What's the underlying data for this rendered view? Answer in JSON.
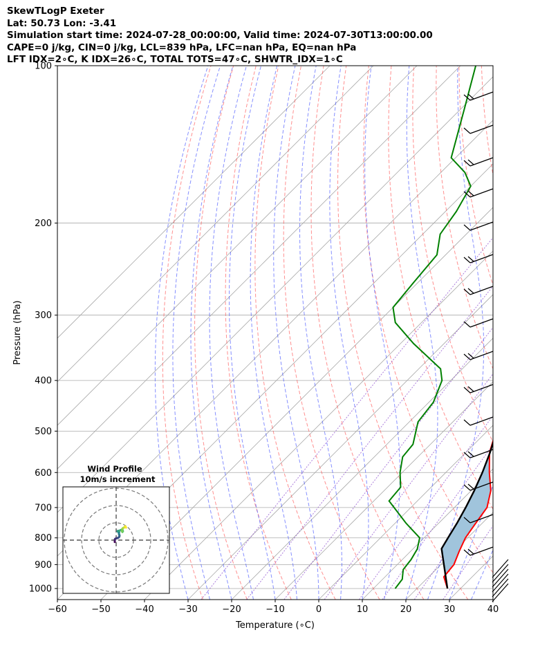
{
  "header": {
    "line1": "SkewTLogP Exeter",
    "line2": "Lat: 50.73   Lon: -3.41",
    "line3": "Simulation start time: 2024-07-28_00:00:00, Valid time: 2024-07-30T13:00:00.00",
    "line4": "CAPE=0 j/kg, CIN=0 j/kg, LCL=839 hPa, LFC=nan hPa, EQ=nan hPa",
    "line5": "LFT IDX=2∘C, K IDX=26∘C, TOTAL TOTS=47∘C, SHWTR_IDX=1∘C"
  },
  "chart_data": {
    "type": "line",
    "xlabel": "Temperature (∘C)",
    "ylabel": "Pressure (hPa)",
    "xlim": [
      -60,
      40
    ],
    "ylim": [
      1050,
      100
    ],
    "y_scale": "log",
    "skew": "45 degrees",
    "x_ticks": [
      "−60",
      "−50",
      "−40",
      "−30",
      "−20",
      "−10",
      "0",
      "10",
      "20",
      "30",
      "40"
    ],
    "x_tick_values": [
      -60,
      -50,
      -40,
      -30,
      -20,
      -10,
      0,
      10,
      20,
      30,
      40
    ],
    "y_ticks": [
      "100",
      "200",
      "300",
      "400",
      "500",
      "600",
      "700",
      "800",
      "900",
      "1000"
    ],
    "y_tick_values": [
      100,
      200,
      300,
      400,
      500,
      600,
      700,
      800,
      900,
      1000
    ],
    "grid": true,
    "colors": {
      "temperature": "#ff0000",
      "dewpoint": "#008000",
      "parcel": "#000000",
      "shade": "#a0c4dc",
      "dry_adiabat": "#ff4444",
      "moist_adiabat": "#3344ff",
      "mixing_ratio": "#8844cc",
      "isotherm": "#aaaaaa"
    },
    "series": [
      {
        "key": "temperature",
        "points": [
          [
            1000,
            27.0
          ],
          [
            950,
            23.5
          ],
          [
            900,
            23.0
          ],
          [
            850,
            21.2
          ],
          [
            800,
            19.5
          ],
          [
            750,
            18.5
          ],
          [
            700,
            17.5
          ],
          [
            650,
            14.5
          ],
          [
            600,
            10.0
          ],
          [
            550,
            5.5
          ],
          [
            500,
            2.0
          ],
          [
            450,
            -1.5
          ],
          [
            400,
            -6.5
          ],
          [
            350,
            -12.5
          ],
          [
            300,
            -19.5
          ],
          [
            270,
            -24.5
          ],
          [
            250,
            -29.0
          ],
          [
            230,
            -33.0
          ],
          [
            220,
            -35.5
          ],
          [
            200,
            -39.0
          ],
          [
            180,
            -42.5
          ],
          [
            160,
            -46.5
          ],
          [
            150,
            -48.5
          ],
          [
            130,
            -52.0
          ],
          [
            120,
            -54.5
          ],
          [
            110,
            -57.5
          ],
          [
            100,
            -60.0
          ]
        ]
      },
      {
        "key": "dewpoint",
        "points": [
          [
            1000,
            15.0
          ],
          [
            960,
            14.5
          ],
          [
            920,
            12.5
          ],
          [
            880,
            12.0
          ],
          [
            840,
            11.0
          ],
          [
            800,
            9.0
          ],
          [
            750,
            2.5
          ],
          [
            680,
            -6.5
          ],
          [
            640,
            -7.0
          ],
          [
            600,
            -10.5
          ],
          [
            560,
            -13.5
          ],
          [
            530,
            -14.0
          ],
          [
            480,
            -18.0
          ],
          [
            440,
            -19.0
          ],
          [
            400,
            -22.0
          ],
          [
            380,
            -25.0
          ],
          [
            340,
            -37.0
          ],
          [
            310,
            -46.0
          ],
          [
            290,
            -50.0
          ],
          [
            260,
            -51.0
          ],
          [
            230,
            -52.0
          ],
          [
            210,
            -56.0
          ],
          [
            190,
            -57.5
          ],
          [
            170,
            -60.0
          ],
          [
            160,
            -64.5
          ],
          [
            150,
            -71.0
          ],
          [
            120,
            -79.5
          ],
          [
            100,
            -86.5
          ]
        ]
      },
      {
        "key": "parcel",
        "points": [
          [
            1000,
            27.0
          ],
          [
            839,
            16.5
          ],
          [
            800,
            15.5
          ],
          [
            750,
            14.2
          ],
          [
            700,
            12.6
          ],
          [
            650,
            10.7
          ],
          [
            600,
            8.4
          ],
          [
            550,
            5.6
          ],
          [
            500,
            2.2
          ],
          [
            450,
            -2.0
          ],
          [
            400,
            -7.2
          ],
          [
            350,
            -13.7
          ],
          [
            300,
            -21.8
          ],
          [
            250,
            -31.8
          ],
          [
            200,
            -44.0
          ],
          [
            150,
            -57.6
          ],
          [
            120,
            -68.0
          ],
          [
            100,
            -75.9
          ]
        ]
      }
    ],
    "wind_barbs_note": "wind barbs on right edge, shown as drawn",
    "inset": {
      "title": "Wind Profile",
      "subtitle": "10m/s increment",
      "hodograph_x": [
        -0.8,
        -0.8,
        -0.8,
        -0.7,
        -0.5,
        0.0,
        0.8,
        1.4,
        1.8,
        1.9,
        1.9,
        1.7,
        1.6,
        1.7,
        1.2,
        0.8,
        1.1,
        1.6,
        2.4,
        3.1,
        3.7,
        3.9,
        3.6,
        3.3,
        3.6,
        4.0,
        4.5,
        4.9,
        5.2,
        5.5,
        5.7
      ],
      "hodograph_y": [
        -1.1,
        -0.5,
        0.0,
        0.5,
        0.8,
        1.0,
        1.2,
        1.5,
        1.9,
        2.4,
        2.9,
        3.3,
        3.9,
        4.6,
        4.7,
        5.2,
        5.3,
        5.4,
        5.7,
        6.0,
        5.9,
        5.1,
        4.7,
        5.2,
        6.6,
        7.0,
        7.2,
        7.6,
        8.0,
        7.7,
        7.2
      ],
      "rings": [
        10,
        20,
        30
      ]
    }
  }
}
